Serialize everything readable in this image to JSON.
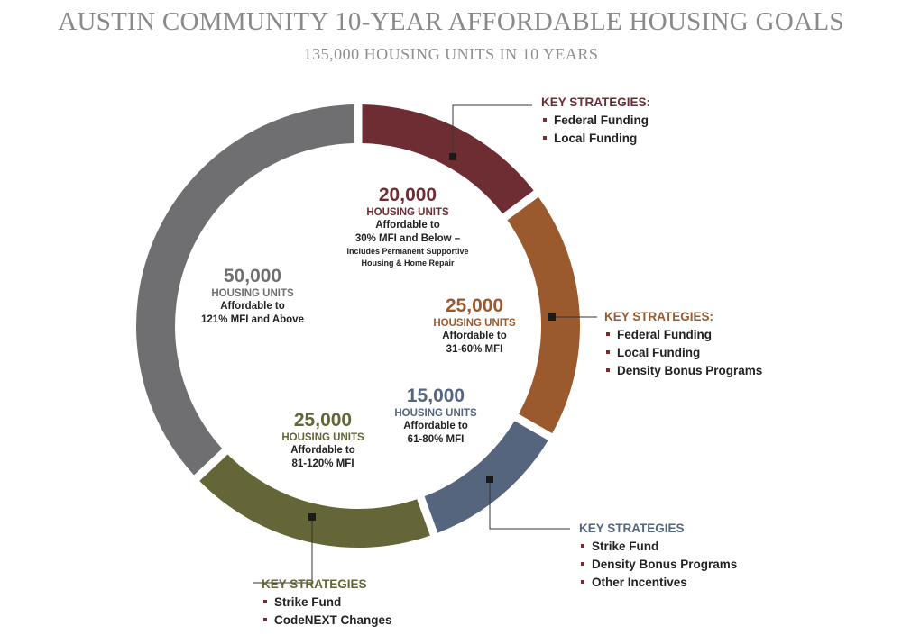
{
  "header": {
    "title": "AUSTIN COMMUNITY 10-YEAR AFFORDABLE HOUSING GOALS",
    "subtitle": "135,000 HOUSING UNITS IN 10 YEARS"
  },
  "chart_data": {
    "type": "pie",
    "total": 135000,
    "segments": [
      {
        "value": 20000,
        "value_label": "20,000",
        "unit": "HOUSING UNITS",
        "desc": [
          "Affordable to",
          "30% MFI and Below –"
        ],
        "note": [
          "Includes Permanent Supportive",
          "Housing & Home Repair"
        ],
        "color": "#6e2d33",
        "label_color": "#6e2d33"
      },
      {
        "value": 25000,
        "value_label": "25,000",
        "unit": "HOUSING UNITS",
        "desc": [
          "Affordable to",
          "31-60% MFI"
        ],
        "note": [],
        "color": "#9a5a2e",
        "label_color": "#9a5a2e"
      },
      {
        "value": 15000,
        "value_label": "15,000",
        "unit": "HOUSING UNITS",
        "desc": [
          "Affordable to",
          "61-80% MFI"
        ],
        "note": [],
        "color": "#55657e",
        "label_color": "#55657e"
      },
      {
        "value": 25000,
        "value_label": "25,000",
        "unit": "HOUSING UNITS",
        "desc": [
          "Affordable to",
          "81-120% MFI"
        ],
        "note": [],
        "color": "#656637",
        "label_color": "#656637"
      },
      {
        "value": 50000,
        "value_label": "50,000",
        "unit": "HOUSING UNITS",
        "desc": [
          "Affordable to",
          "121% MFI and Above"
        ],
        "note": [],
        "color": "#6f6f71",
        "label_color": "#6f6f71"
      }
    ],
    "strategies": [
      {
        "segment": 0,
        "heading": "KEY STRATEGIES:",
        "items": [
          "Federal Funding",
          "Local Funding"
        ],
        "color": "#6e2d33"
      },
      {
        "segment": 1,
        "heading": "KEY STRATEGIES:",
        "items": [
          "Federal Funding",
          "Local Funding",
          "Density Bonus Programs"
        ],
        "color": "#9a5a2e"
      },
      {
        "segment": 2,
        "heading": "KEY STRATEGIES",
        "items": [
          "Strike Fund",
          "Density Bonus Programs",
          "Other Incentives"
        ],
        "color": "#55657e"
      },
      {
        "segment": 3,
        "heading": "KEY STRATEGIES",
        "items": [
          "Strike Fund",
          "CodeNEXT Changes"
        ],
        "color": "#656637"
      }
    ]
  }
}
